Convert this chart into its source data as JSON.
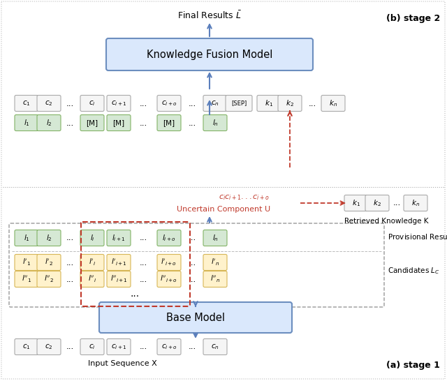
{
  "fig_width": 6.4,
  "fig_height": 5.46,
  "bg_color": "#ffffff",
  "stage1_label": "(a) stage 1",
  "stage2_label": "(b) stage 2",
  "final_results_label": "Final Results $\\bar{L}$",
  "input_seq_label": "Input Sequence X",
  "provisional_label": "Provisional Result $L_p$",
  "candidates_label": "Candidates $L_C$",
  "retrieved_label": "Retrieved Knowledge K",
  "uncertain_label": "Uncertain Component U",
  "kfm_label": "Knowledge Fusion Model",
  "base_label": "Base Model",
  "box_fill_blue": "#dae8fc",
  "box_stroke_blue": "#6c8ebf",
  "cell_green_fill": "#d5e8d4",
  "cell_green_stroke": "#82b366",
  "cell_yellow_fill": "#fff2cc",
  "cell_yellow_stroke": "#d6b656",
  "cell_gray_fill": "#f5f5f5",
  "cell_gray_stroke": "#aaaaaa",
  "arrow_blue": "#5b7fbc",
  "arrow_red": "#c0392b",
  "dashed_gray": "#999999",
  "dashed_red": "#c0392b",
  "text_red": "#c0392b"
}
